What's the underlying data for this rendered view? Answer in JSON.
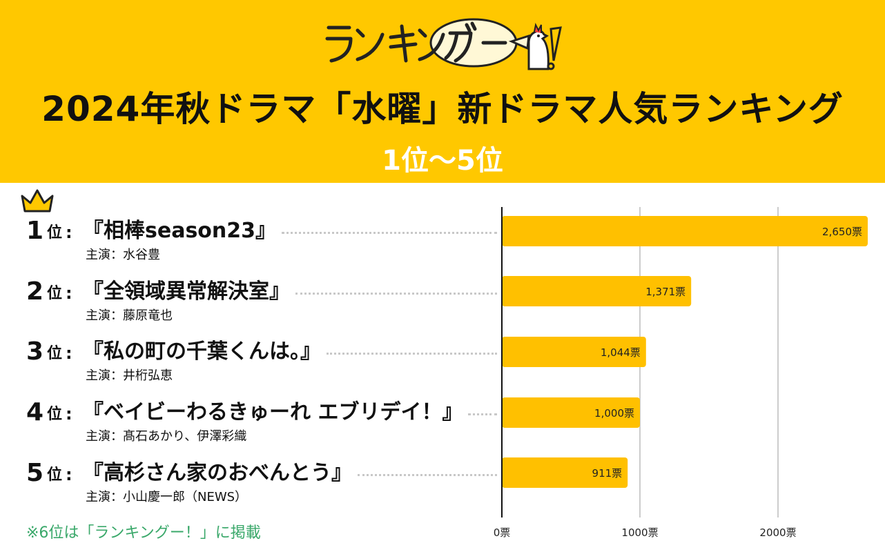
{
  "header": {
    "logo_text": "ランキングー!",
    "title": "2024年秋ドラマ「水曜」新ドラマ人気ランキング",
    "subtitle": "1位〜5位"
  },
  "colors": {
    "header_bg": "#ffc800",
    "bar": "#ffc000",
    "note": "#3aa86a",
    "grid": "#cccccc"
  },
  "crown_icon": "crown-icon",
  "rows": [
    {
      "num": "1",
      "unit": "位",
      "colon": ":",
      "title": "『相棒season23』",
      "cast": "主演：水谷豊"
    },
    {
      "num": "2",
      "unit": "位",
      "colon": ":",
      "title": "『全領域異常解決室』",
      "cast": "主演：藤原竜也"
    },
    {
      "num": "3",
      "unit": "位",
      "colon": ":",
      "title": "『私の町の千葉くんは。』",
      "cast": "主演：井桁弘恵"
    },
    {
      "num": "4",
      "unit": "位",
      "colon": ":",
      "title": "『ベイビーわるきゅーれ エブリデイ！』",
      "cast": "主演：髙石あかり、伊澤彩織"
    },
    {
      "num": "5",
      "unit": "位",
      "colon": ":",
      "title": "『高杉さん家のおべんとう』",
      "cast": "主演：小山慶一郎（NEWS）"
    }
  ],
  "note": "※6位は「ランキングー！」に掲載",
  "chart_data": {
    "type": "bar",
    "orientation": "horizontal",
    "categories": [
      "『相棒season23』",
      "『全領域異常解決室』",
      "『私の町の千葉くんは。』",
      "『ベイビーわるきゅーれ エブリデイ！』",
      "『高杉さん家のおべんとう』"
    ],
    "values": [
      2650,
      1371,
      1044,
      1000,
      911
    ],
    "value_labels": [
      "2,650票",
      "1,371票",
      "1,044票",
      "1,000票",
      "911票"
    ],
    "x_ticks": [
      0,
      1000,
      2000
    ],
    "x_tick_labels": [
      "0票",
      "1000票",
      "2000票"
    ],
    "xlim": [
      0,
      2650
    ],
    "grid": true
  }
}
